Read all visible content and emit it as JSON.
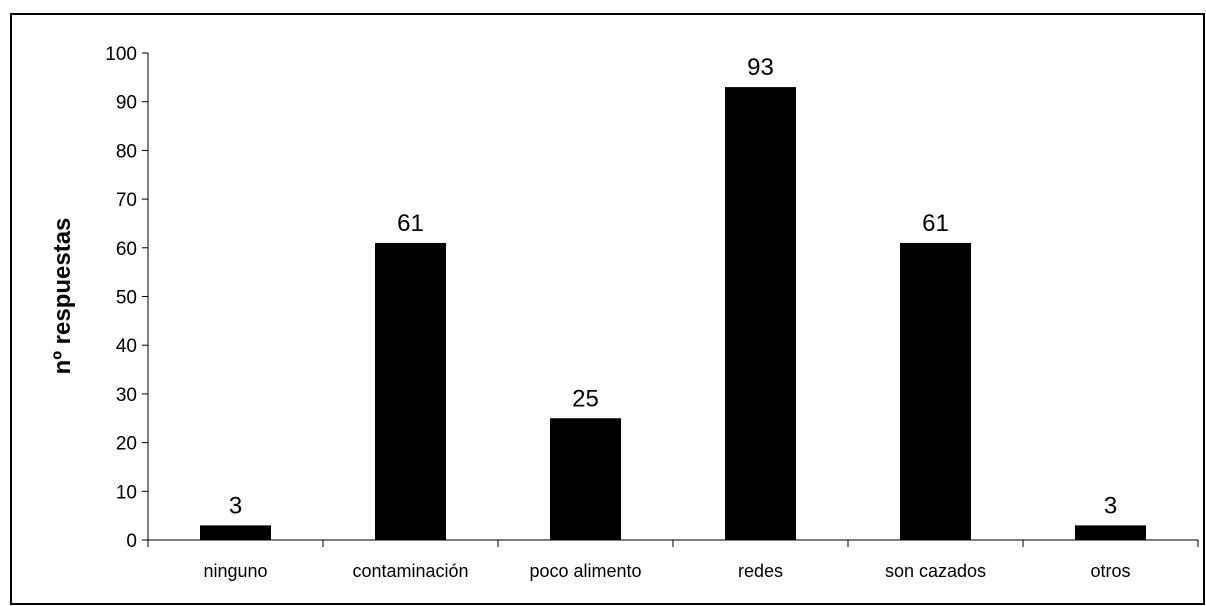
{
  "chart_data": {
    "type": "bar",
    "categories": [
      "ninguno",
      "contaminación",
      "poco alimento",
      "redes",
      "son cazados",
      "otros"
    ],
    "values": [
      3,
      61,
      25,
      93,
      61,
      3
    ],
    "data_labels": [
      "3",
      "61",
      "25",
      "93",
      "61",
      "3"
    ],
    "title": "",
    "xlabel": "",
    "ylabel": "nº respuestas",
    "ylim": [
      0,
      100
    ],
    "yticks": [
      0,
      10,
      20,
      30,
      40,
      50,
      60,
      70,
      80,
      90,
      100
    ],
    "grid": false,
    "legend": "none",
    "bar_color": "#000000"
  }
}
